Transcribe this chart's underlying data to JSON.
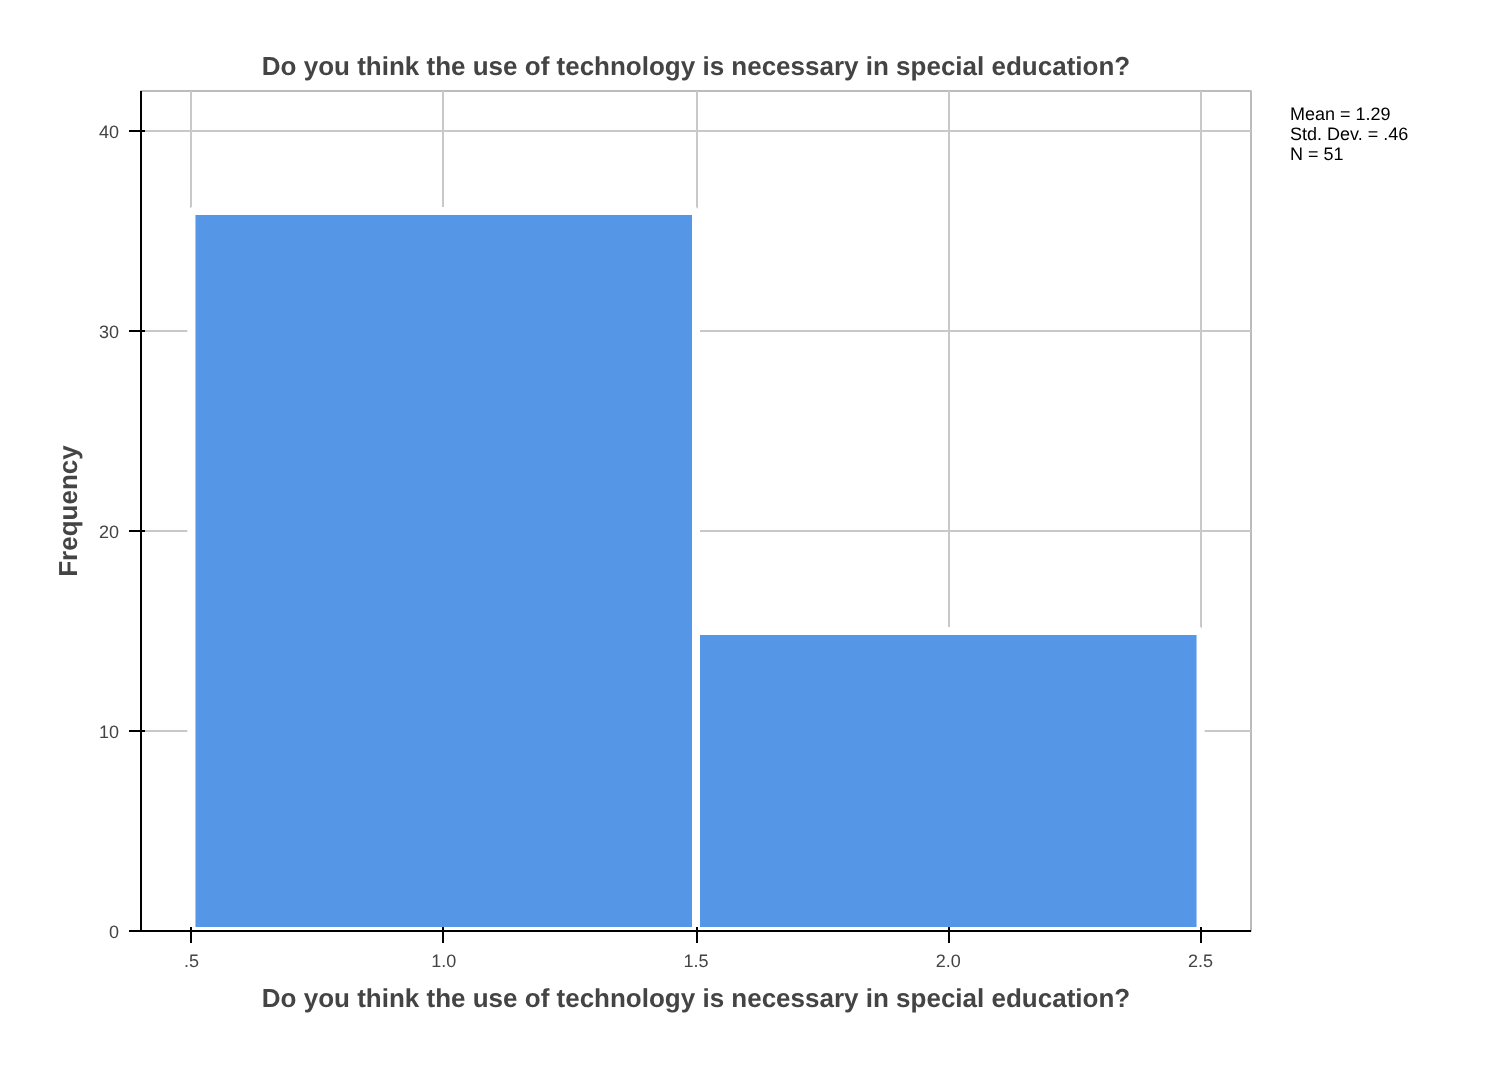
{
  "chart_data": {
    "type": "histogram",
    "title": "Do you think the use of technology is necessary in special education?",
    "xlabel": "Do you think the use of technology is necessary in special education?",
    "ylabel": "Frequency",
    "bins": [
      0.5,
      1.5,
      2.5
    ],
    "values": [
      36,
      15
    ],
    "color": "#5596e6",
    "xlim": [
      0.4,
      2.6
    ],
    "ylim": [
      0,
      42
    ],
    "xticks": [
      {
        "value": 0.5,
        "label": ".5"
      },
      {
        "value": 1.0,
        "label": "1.0"
      },
      {
        "value": 1.5,
        "label": "1.5"
      },
      {
        "value": 2.0,
        "label": "2.0"
      },
      {
        "value": 2.5,
        "label": "2.5"
      }
    ],
    "yticks": [
      0,
      10,
      20,
      30,
      40
    ],
    "grid": true,
    "annotations": [
      "Mean = 1.29",
      "Std. Dev. = .46",
      "N = 51"
    ]
  }
}
